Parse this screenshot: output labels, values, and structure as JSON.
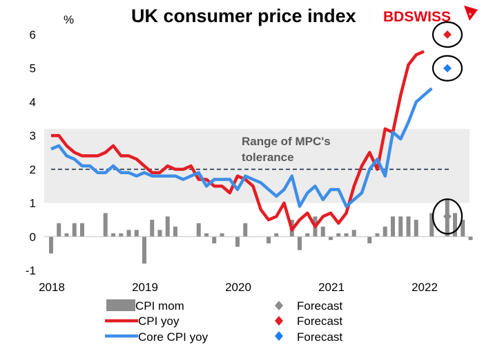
{
  "chart_data": {
    "type": "bar+line",
    "title": "UK consumer price index",
    "ylabel": "%",
    "ylim": [
      -1,
      6
    ],
    "yticks": [
      "-1",
      "0",
      "1",
      "2",
      "3",
      "4",
      "5",
      "6"
    ],
    "xticks": [
      "2018",
      "2019",
      "2020",
      "2021",
      "2022"
    ],
    "band": {
      "label_line1": "Range of MPC's",
      "label_line2": "tolerance",
      "from": 1,
      "to": 3.2,
      "target": 2
    },
    "series": [
      {
        "name": "CPI mom",
        "kind": "bar",
        "color": "#8c8c8c",
        "values": [
          -0.5,
          0.4,
          0.1,
          0.4,
          0.4,
          0.0,
          0.0,
          0.7,
          0.1,
          0.1,
          0.2,
          0.2,
          -0.8,
          0.5,
          0.2,
          0.6,
          0.3,
          0.0,
          0.0,
          0.4,
          0.1,
          -0.2,
          0.1,
          0.0,
          -0.3,
          0.4,
          0.0,
          0.0,
          -0.2,
          0.1,
          0.0,
          0.5,
          -0.4,
          0.1,
          0.6,
          0.3,
          -0.1,
          0.1,
          0.1,
          0.2,
          0.0,
          -0.2,
          0.1,
          0.3,
          0.6,
          0.6,
          0.6,
          0.5,
          0.0,
          0.7,
          0.0,
          1.1,
          0.7,
          0.5,
          -0.1
        ]
      },
      {
        "name": "CPI yoy",
        "kind": "line",
        "color": "#e31e24",
        "values": [
          3.0,
          3.0,
          2.7,
          2.5,
          2.4,
          2.4,
          2.4,
          2.5,
          2.7,
          2.4,
          2.4,
          2.3,
          2.1,
          1.9,
          1.9,
          2.1,
          2.0,
          2.0,
          2.1,
          1.7,
          1.7,
          1.5,
          1.5,
          1.3,
          1.8,
          1.7,
          1.5,
          0.8,
          0.5,
          0.6,
          1.0,
          0.2,
          0.5,
          0.7,
          0.3,
          0.6,
          0.7,
          0.4,
          0.7,
          1.5,
          2.1,
          2.5,
          2.0,
          3.2,
          3.1,
          4.2,
          5.1,
          5.4,
          5.5
        ]
      },
      {
        "name": "Core CPI yoy",
        "kind": "line",
        "color": "#3d8ee8",
        "values": [
          2.6,
          2.7,
          2.4,
          2.3,
          2.1,
          2.1,
          1.9,
          1.9,
          2.1,
          1.9,
          1.9,
          1.8,
          1.9,
          1.8,
          1.8,
          1.8,
          1.8,
          1.7,
          1.8,
          1.9,
          1.5,
          1.7,
          1.7,
          1.7,
          1.4,
          1.8,
          1.7,
          1.6,
          1.4,
          1.2,
          1.4,
          1.8,
          0.9,
          1.3,
          1.5,
          1.1,
          1.4,
          1.4,
          0.9,
          1.1,
          1.3,
          2.0,
          2.3,
          1.8,
          3.1,
          2.9,
          3.4,
          4.0,
          4.2,
          4.4
        ]
      }
    ],
    "forecasts": [
      {
        "series": "CPI mom",
        "value": 0.6,
        "color": "#8c8c8c"
      },
      {
        "series": "CPI yoy",
        "value": 6.0,
        "color": "#e31e24"
      },
      {
        "series": "Core CPI yoy",
        "value": 5.0,
        "color": "#1e7ff0"
      }
    ],
    "legend": [
      {
        "label": "CPI mom",
        "marker": "bar",
        "color": "#8c8c8c"
      },
      {
        "label": "Forecast",
        "marker": "diamond",
        "color": "#8c8c8c"
      },
      {
        "label": "CPI yoy",
        "marker": "line",
        "color": "#e31e24"
      },
      {
        "label": "Forecast",
        "marker": "diamond",
        "color": "#e31e24"
      },
      {
        "label": "Core CPI yoy",
        "marker": "line",
        "color": "#3d8ee8"
      },
      {
        "label": "Forecast",
        "marker": "diamond",
        "color": "#1e7ff0"
      }
    ]
  },
  "logo": {
    "text": "BDSWISS",
    "color": "#e30613"
  }
}
